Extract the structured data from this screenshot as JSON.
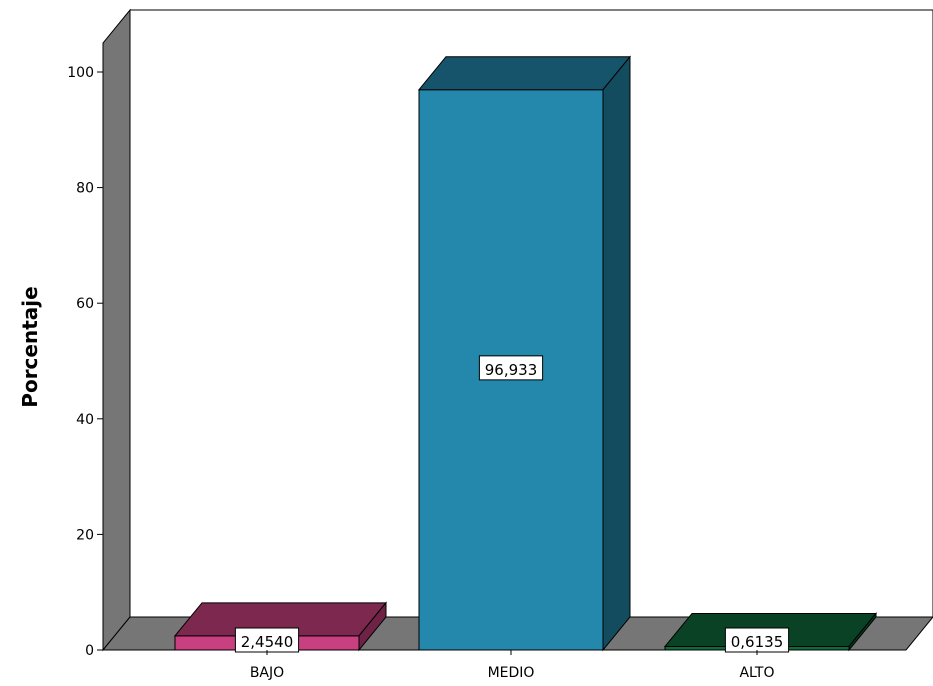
{
  "chart_data": {
    "type": "bar",
    "style": "3d",
    "categories": [
      "BAJO",
      "MEDIO",
      "ALTO"
    ],
    "values": [
      2.454,
      96.933,
      0.6135
    ],
    "data_labels": [
      "2,4540",
      "96,933",
      "0,6135"
    ],
    "colors": [
      "#C8407F",
      "#2388AC",
      "#106B3B"
    ],
    "title": "",
    "xlabel": "",
    "ylabel": "Porcentaje",
    "ylim": [
      0,
      100
    ],
    "yticks": [
      0,
      20,
      40,
      60,
      80,
      100
    ],
    "grid": false,
    "legend": "none"
  },
  "colors": {
    "wall": "#767676",
    "floor": "#767676",
    "background": "#ffffff"
  }
}
